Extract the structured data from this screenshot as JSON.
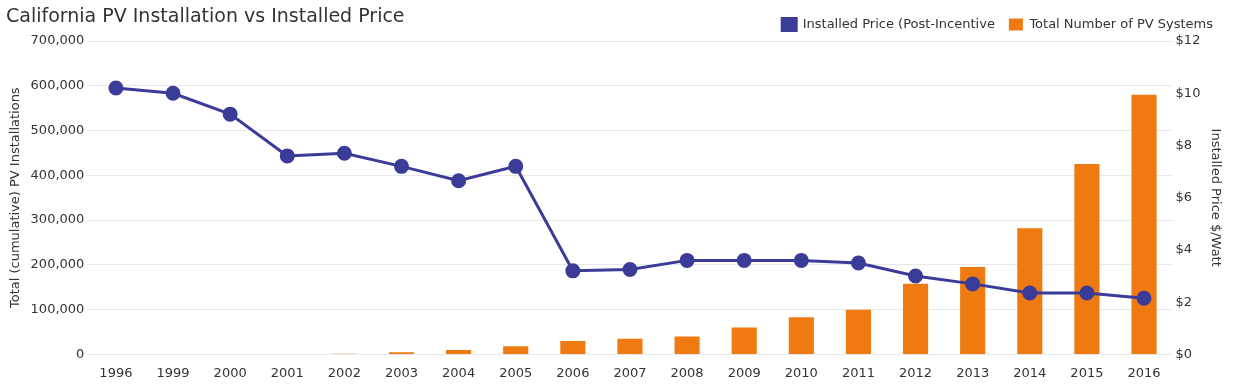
{
  "chart_data": {
    "type": "bar",
    "title": "California PV Installation vs Installed Price",
    "categories": [
      "1996",
      "1999",
      "2000",
      "2001",
      "2002",
      "2003",
      "2004",
      "2005",
      "2006",
      "2007",
      "2008",
      "2009",
      "2010",
      "2011",
      "2012",
      "2013",
      "2014",
      "2015",
      "2016"
    ],
    "series": [
      {
        "name": "Total Number of PV Systems",
        "type": "bar",
        "color": "#ef7a12",
        "values": [
          0,
          0,
          0,
          0,
          1500,
          5000,
          10000,
          18000,
          30000,
          35000,
          40000,
          60000,
          83000,
          100000,
          158000,
          195000,
          282000,
          425000,
          580000
        ]
      },
      {
        "name": "Installed Price (Post-Incentive",
        "type": "line",
        "axis": "y2",
        "color": "#3b3b98",
        "marker": "circle",
        "values": [
          10.2,
          10.0,
          9.2,
          7.6,
          7.7,
          7.2,
          6.65,
          7.2,
          3.2,
          3.25,
          3.6,
          3.6,
          3.6,
          3.5,
          3.0,
          2.7,
          2.35,
          2.35,
          2.15
        ]
      }
    ],
    "y_label": "Total (cumulative) PV Installations",
    "y2_label": "Installed Price $/Watt",
    "ylim": [
      0,
      700000
    ],
    "yticks": [
      0,
      {
        "value": 100000,
        "label": "100,000"
      },
      {
        "value": 200000,
        "label": "200,000"
      },
      {
        "value": 300000,
        "label": "300,000"
      },
      {
        "value": 400000,
        "label": "400,000"
      },
      {
        "value": 500000,
        "label": "500,000"
      },
      {
        "value": 600000,
        "label": "600,000"
      },
      {
        "value": 700000,
        "label": "700,000"
      }
    ],
    "y2lim": [
      0,
      12
    ],
    "y2ticks": [
      {
        "value": 0,
        "label": "$0"
      },
      {
        "value": 2,
        "label": "$2"
      },
      {
        "value": 4,
        "label": "$4"
      },
      {
        "value": 6,
        "label": "$6"
      },
      {
        "value": 8,
        "label": "$8"
      },
      {
        "value": 10,
        "label": "$10"
      },
      {
        "value": 12,
        "label": "$12"
      }
    ],
    "grid": true,
    "legend": "top-right"
  }
}
